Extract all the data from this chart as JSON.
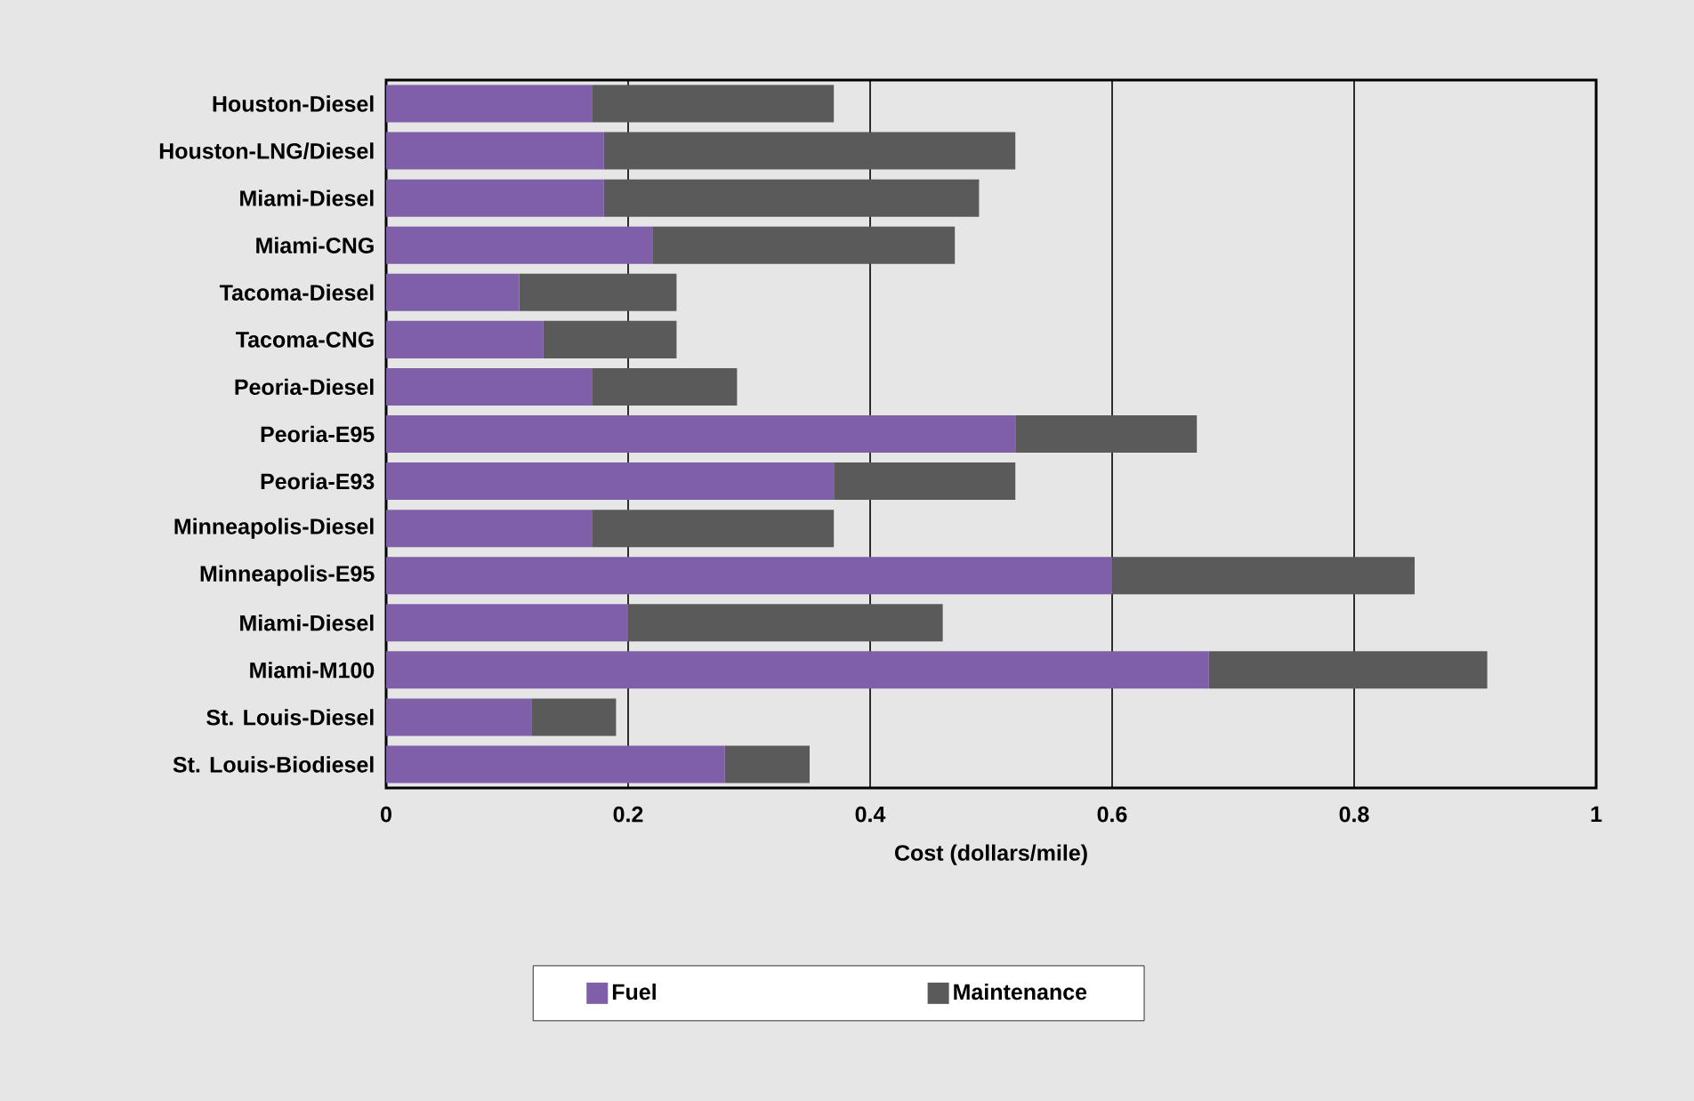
{
  "chart_data": {
    "type": "bar",
    "orientation": "horizontal",
    "stacked": true,
    "categories": [
      "Houston-Diesel",
      "Houston-LNG/Diesel",
      "Miami-Diesel",
      "Miami-CNG",
      "Tacoma-Diesel",
      "Tacoma-CNG",
      "Peoria-Diesel",
      "Peoria-E95",
      "Peoria-E93",
      "Minneapolis-Diesel",
      "Minneapolis-E95",
      "Miami-Diesel",
      "Miami-M100",
      "St. Louis-Diesel",
      "St. Louis-Biodiesel"
    ],
    "series": [
      {
        "name": "Fuel",
        "color": "#7f5fa8",
        "values": [
          0.17,
          0.18,
          0.18,
          0.22,
          0.11,
          0.13,
          0.17,
          0.52,
          0.37,
          0.17,
          0.6,
          0.2,
          0.68,
          0.12,
          0.28
        ]
      },
      {
        "name": "Maintenance",
        "color": "#5a5a5a",
        "values": [
          0.2,
          0.34,
          0.31,
          0.25,
          0.13,
          0.11,
          0.12,
          0.15,
          0.15,
          0.2,
          0.25,
          0.26,
          0.23,
          0.07,
          0.07
        ]
      }
    ],
    "xlabel": "Cost (dollars/mile)",
    "xlim": [
      0,
      1
    ],
    "xticks": [
      0,
      0.2,
      0.4,
      0.6,
      0.8,
      1
    ],
    "grid": "x",
    "legend": "bottom"
  }
}
